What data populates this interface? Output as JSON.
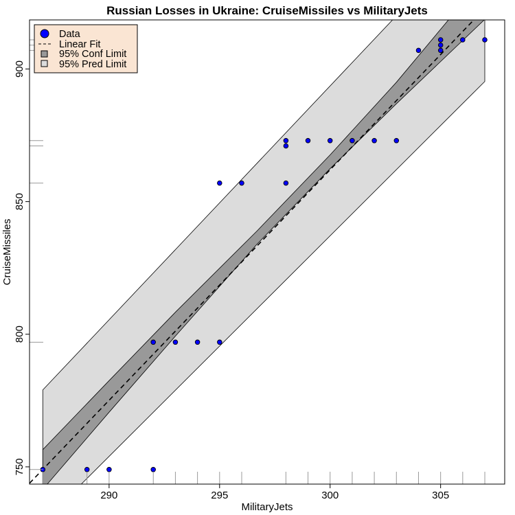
{
  "chart_data": {
    "type": "scatter",
    "title": "Russian Losses in Ukraine: CruiseMissiles vs MilitaryJets",
    "xlabel": "MilitaryJets",
    "ylabel": "CruiseMissiles",
    "xlim": [
      286.4,
      307.9
    ],
    "ylim": [
      743.5,
      918.5
    ],
    "xticks": [
      290,
      295,
      300,
      305
    ],
    "yticks": [
      750,
      800,
      850,
      900
    ],
    "grid": false,
    "legend_position": "top-left",
    "legend": [
      "Data",
      "Linear Fit",
      "95% Conf Limit",
      "95% Pred Limit"
    ],
    "points": [
      {
        "x": 287,
        "y": 749
      },
      {
        "x": 289,
        "y": 749
      },
      {
        "x": 290,
        "y": 749
      },
      {
        "x": 292,
        "y": 749
      },
      {
        "x": 292,
        "y": 797
      },
      {
        "x": 293,
        "y": 797
      },
      {
        "x": 294,
        "y": 797
      },
      {
        "x": 295,
        "y": 797
      },
      {
        "x": 295,
        "y": 857
      },
      {
        "x": 296,
        "y": 857
      },
      {
        "x": 298,
        "y": 857
      },
      {
        "x": 298,
        "y": 871
      },
      {
        "x": 298,
        "y": 873
      },
      {
        "x": 299,
        "y": 873
      },
      {
        "x": 300,
        "y": 873
      },
      {
        "x": 301,
        "y": 873
      },
      {
        "x": 302,
        "y": 873
      },
      {
        "x": 303,
        "y": 873
      },
      {
        "x": 304,
        "y": 907
      },
      {
        "x": 305,
        "y": 907
      },
      {
        "x": 305,
        "y": 909
      },
      {
        "x": 305,
        "y": 911
      },
      {
        "x": 306,
        "y": 911
      },
      {
        "x": 307,
        "y": 911
      }
    ],
    "fit": {
      "slope": 8.69,
      "intercept": -1745.0
    },
    "conf_band": {
      "x": [
        287,
        290,
        293,
        296.7,
        300,
        303,
        307
      ],
      "lower": [
        741.5,
        770.6,
        799.3,
        834.0,
        862.4,
        886.9,
        918.7
      ],
      "upper": [
        756.5,
        782.5,
        808.3,
        839.0,
        867.6,
        895.0,
        934.9
      ]
    },
    "pred_band": {
      "x": [
        287,
        307
      ],
      "lower": [
        729.0,
        895.3
      ],
      "upper": [
        779.0,
        955.3
      ]
    },
    "colors": {
      "point_fill": "#0000ff",
      "point_stroke": "#000000",
      "fit_line": "#000000",
      "conf_fill": "#999999",
      "pred_fill": "#dcdcdc",
      "legend_bg": "#fae5d3",
      "rug": "#999999"
    }
  }
}
